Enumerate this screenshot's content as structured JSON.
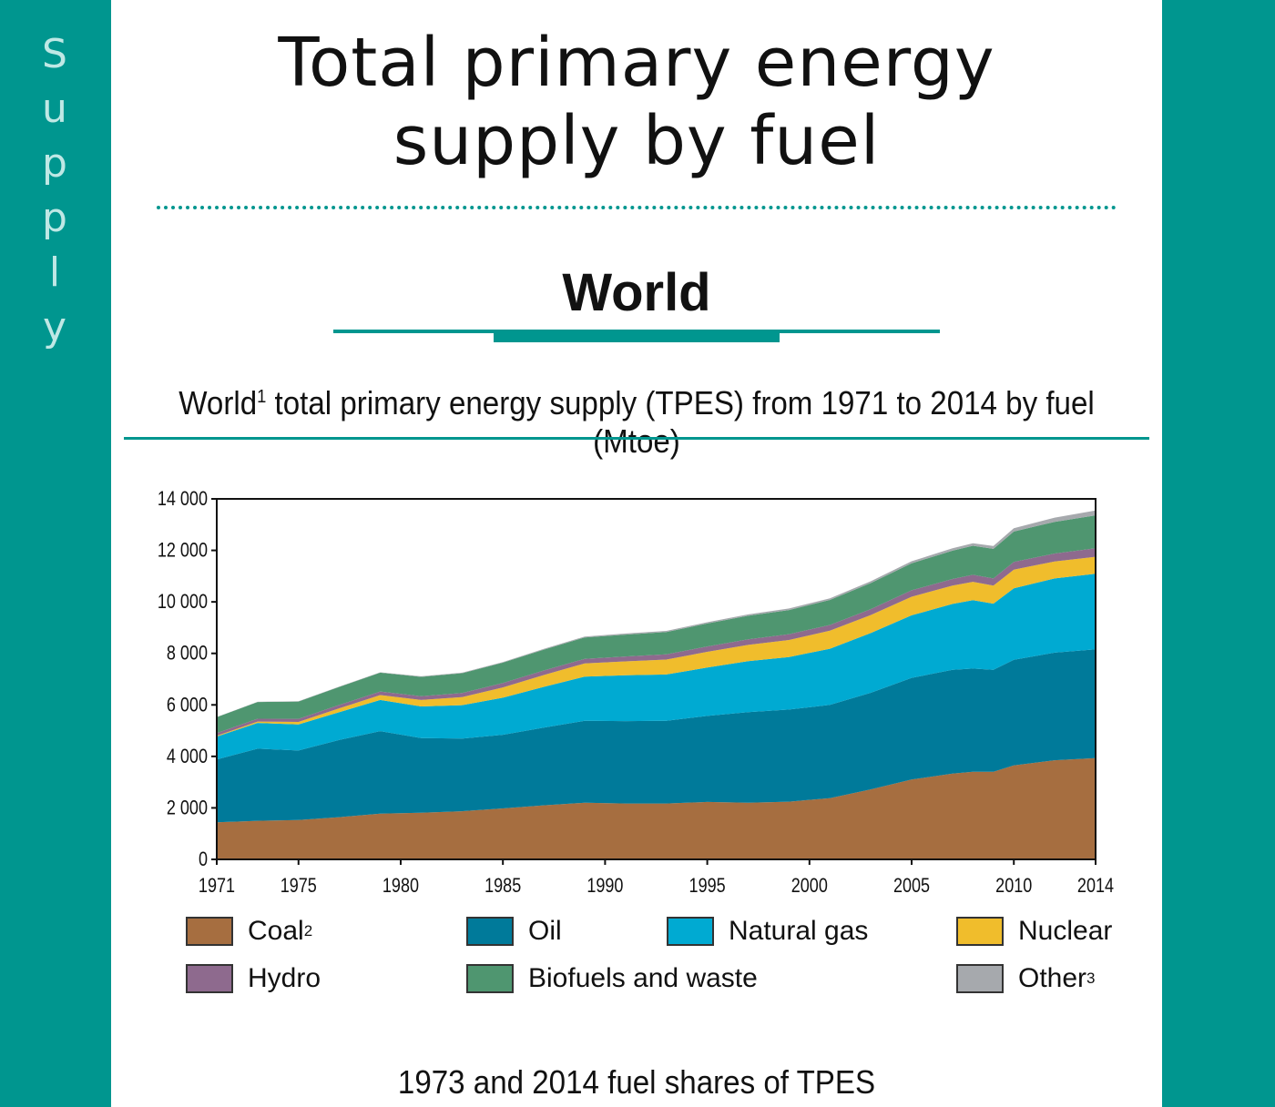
{
  "sidebar": {
    "letters": [
      "S",
      "u",
      "p",
      "p",
      "l",
      "y"
    ]
  },
  "header": {
    "title_line1": "Total primary energy",
    "title_line2": "supply by fuel",
    "section": "World"
  },
  "caption": {
    "prefix": "World",
    "sup": "1",
    "rest": " total primary energy supply (TPES) from 1971 to 2014 by fuel (Mtoe)"
  },
  "subcaption": "1973 and 2014 fuel shares of TPES",
  "legend": [
    {
      "label": "Coal",
      "sup": "2",
      "color": "#a66e40"
    },
    {
      "label": "Oil",
      "sup": "",
      "color": "#007a9a"
    },
    {
      "label": "Natural gas",
      "sup": "",
      "color": "#00aad2"
    },
    {
      "label": "Nuclear",
      "sup": "",
      "color": "#f0bd2c"
    },
    {
      "label": "Hydro",
      "sup": "",
      "color": "#8e6a8e"
    },
    {
      "label": "Biofuels and waste",
      "sup": "",
      "color": "#4f9670"
    },
    {
      "label": "Other",
      "sup": "3",
      "color": "#a6a9ad"
    }
  ],
  "chart_data": {
    "type": "area",
    "stacked": true,
    "x": [
      1971,
      1973,
      1975,
      1977,
      1979,
      1981,
      1983,
      1985,
      1987,
      1989,
      1991,
      1993,
      1995,
      1997,
      1999,
      2001,
      2003,
      2005,
      2007,
      2008,
      2009,
      2010,
      2012,
      2014
    ],
    "series": [
      {
        "name": "Coal",
        "values": [
          1440,
          1500,
          1530,
          1640,
          1780,
          1810,
          1870,
          1980,
          2100,
          2200,
          2170,
          2170,
          2230,
          2200,
          2240,
          2380,
          2720,
          3100,
          3330,
          3400,
          3400,
          3650,
          3850,
          3930
        ]
      },
      {
        "name": "Oil",
        "values": [
          2440,
          2800,
          2700,
          3000,
          3200,
          2900,
          2820,
          2860,
          3020,
          3180,
          3200,
          3210,
          3340,
          3520,
          3580,
          3620,
          3750,
          3950,
          4030,
          4010,
          3960,
          4100,
          4180,
          4230
        ]
      },
      {
        "name": "Natural gas",
        "values": [
          890,
          1000,
          1010,
          1080,
          1210,
          1230,
          1300,
          1440,
          1580,
          1720,
          1780,
          1800,
          1880,
          1980,
          2040,
          2180,
          2320,
          2430,
          2560,
          2660,
          2570,
          2780,
          2880,
          2930
        ]
      },
      {
        "name": "Nuclear",
        "values": [
          29,
          53,
          100,
          150,
          190,
          250,
          310,
          400,
          460,
          510,
          540,
          580,
          610,
          630,
          660,
          700,
          700,
          720,
          710,
          710,
          700,
          720,
          660,
          660
        ]
      },
      {
        "name": "Hydro",
        "values": [
          104,
          110,
          120,
          130,
          140,
          150,
          160,
          170,
          175,
          180,
          190,
          200,
          210,
          220,
          225,
          225,
          230,
          250,
          260,
          270,
          280,
          300,
          310,
          330
        ]
      },
      {
        "name": "Biofuels and waste",
        "values": [
          620,
          650,
          670,
          700,
          730,
          750,
          770,
          790,
          810,
          830,
          850,
          870,
          890,
          910,
          940,
          970,
          1010,
          1050,
          1100,
          1130,
          1150,
          1180,
          1230,
          1280
        ]
      },
      {
        "name": "Other",
        "values": [
          6,
          8,
          10,
          12,
          15,
          18,
          22,
          26,
          30,
          35,
          40,
          45,
          50,
          55,
          60,
          65,
          70,
          80,
          90,
          100,
          110,
          130,
          160,
          190
        ]
      }
    ],
    "xticks": [
      "1971",
      "1975",
      "1980",
      "1985",
      "1990",
      "1995",
      "2000",
      "2005",
      "2010",
      "2014"
    ],
    "yticks": [
      "0",
      "2 000",
      "4 000",
      "6 000",
      "8 000",
      "10 000",
      "12 000",
      "14 000"
    ],
    "xlim": [
      1971,
      2014
    ],
    "ylim": [
      0,
      14000
    ],
    "grid": false,
    "legend_position": "bottom"
  }
}
